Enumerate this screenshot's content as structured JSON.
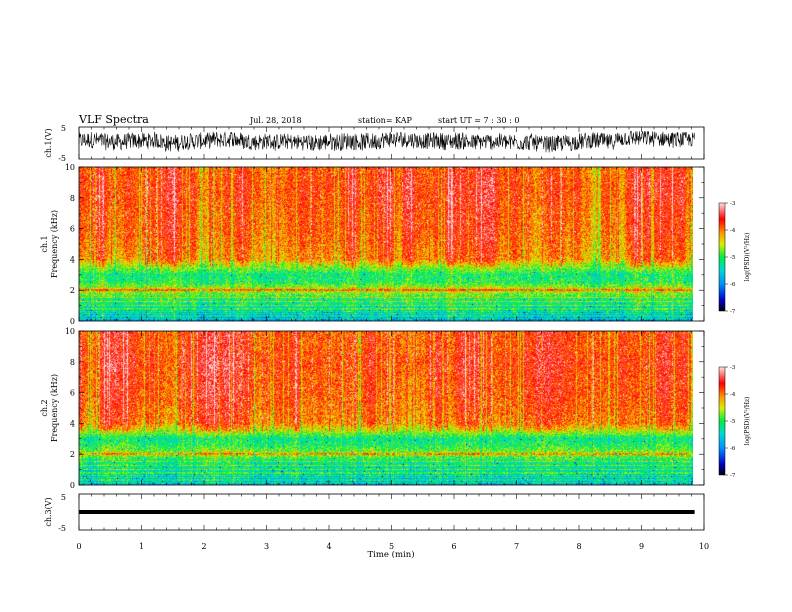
{
  "header": {
    "title": "VLF Spectra",
    "date": "Jul. 28, 2018",
    "station": "station= KAP",
    "start": "start UT = 7 : 30 : 0"
  },
  "chart_data": [
    {
      "type": "line",
      "panel": "ch1-waveform",
      "ylabel": "ch.1(V)",
      "ylim": [
        -5,
        5
      ],
      "yticks": [
        "5",
        "-5"
      ],
      "x_range": [
        0,
        9.85
      ],
      "x": [
        0,
        0.5,
        1,
        1.5,
        2,
        2.5,
        3,
        3.5,
        4,
        4.5,
        5,
        5.5,
        6,
        6.5,
        7,
        7.5,
        8,
        8.5,
        9,
        9.5,
        9.85
      ],
      "envelope_high": [
        3.8,
        3.5,
        3.9,
        3.2,
        3.6,
        3.4,
        3.7,
        3.3,
        3.5,
        3.8,
        3.6,
        3.4,
        3.7,
        3.5,
        3.8,
        3.3,
        3.6,
        3.4,
        3.7,
        3.5,
        3.2
      ],
      "envelope_low": [
        -2.4,
        -2.8,
        -2.2,
        -3.0,
        -2.6,
        -2.9,
        -2.3,
        -2.7,
        -3.1,
        -2.5,
        -2.8,
        -2.4,
        -2.9,
        -2.6,
        -2.3,
        -3.0,
        -2.5,
        -2.8,
        -2.4,
        -2.7,
        -2.5
      ],
      "color": "#000000"
    },
    {
      "type": "heatmap",
      "panel": "ch1-spectrogram",
      "ylabel_top": "ch.1",
      "ylabel": "Frequency (kHz)",
      "ylim": [
        0,
        10
      ],
      "yticks": [
        "0",
        "2",
        "4",
        "6",
        "8",
        "10"
      ],
      "xlim": [
        0,
        10
      ],
      "colorbar": {
        "label": "log(PSD)(V²/Hz)",
        "range": [
          -7,
          -3
        ],
        "ticks": [
          "-3",
          "-4",
          "-5",
          "-6",
          "-7"
        ],
        "colors": [
          "#000000",
          "#0000cc",
          "#0090ff",
          "#00d8d8",
          "#00ee40",
          "#d8f000",
          "#ff9800",
          "#ff0000",
          "#ffe0e0"
        ]
      },
      "frequency_profile_khz": [
        0,
        0.5,
        1,
        1.5,
        2,
        2.5,
        3,
        3.5,
        4,
        5,
        6,
        7,
        8,
        9,
        10
      ],
      "typical_log_psd": [
        -5.8,
        -5.6,
        -5.2,
        -5.0,
        -4.4,
        -5.0,
        -5.1,
        -4.6,
        -4.0,
        -3.9,
        -3.8,
        -3.8,
        -3.7,
        -3.7,
        -3.8
      ]
    },
    {
      "type": "heatmap",
      "panel": "ch2-spectrogram",
      "ylabel_top": "ch.2",
      "ylabel": "Frequency (kHz)",
      "ylim": [
        0,
        10
      ],
      "yticks": [
        "0",
        "2",
        "4",
        "6",
        "8",
        "10"
      ],
      "xlim": [
        0,
        10
      ],
      "colorbar": {
        "label": "log(PSD)(V²/Hz)",
        "range": [
          -7,
          -3
        ],
        "ticks": [
          "-3",
          "-4",
          "-5",
          "-6",
          "-7"
        ],
        "colors": [
          "#000000",
          "#0000cc",
          "#0090ff",
          "#00d8d8",
          "#00ee40",
          "#d8f000",
          "#ff9800",
          "#ff0000",
          "#ffe0e0"
        ]
      },
      "frequency_profile_khz": [
        0,
        0.5,
        1,
        1.5,
        2,
        2.5,
        3,
        3.5,
        4,
        5,
        6,
        7,
        8,
        9,
        10
      ],
      "typical_log_psd": [
        -5.7,
        -5.6,
        -5.3,
        -5.2,
        -4.6,
        -5.0,
        -5.2,
        -4.5,
        -4.0,
        -3.9,
        -3.8,
        -3.8,
        -3.7,
        -3.8,
        -3.8
      ]
    },
    {
      "type": "line",
      "panel": "ch3-waveform",
      "ylabel": "ch.3(V)",
      "ylim": [
        -5,
        5
      ],
      "yticks": [
        "5",
        "-5"
      ],
      "xlabel": "Time (min)",
      "xlim": [
        0,
        10
      ],
      "xticks": [
        "0",
        "1",
        "2",
        "3",
        "4",
        "5",
        "6",
        "7",
        "8",
        "9",
        "10"
      ],
      "x": [
        0,
        9.85
      ],
      "y": [
        0,
        0
      ],
      "color": "#000000"
    }
  ]
}
